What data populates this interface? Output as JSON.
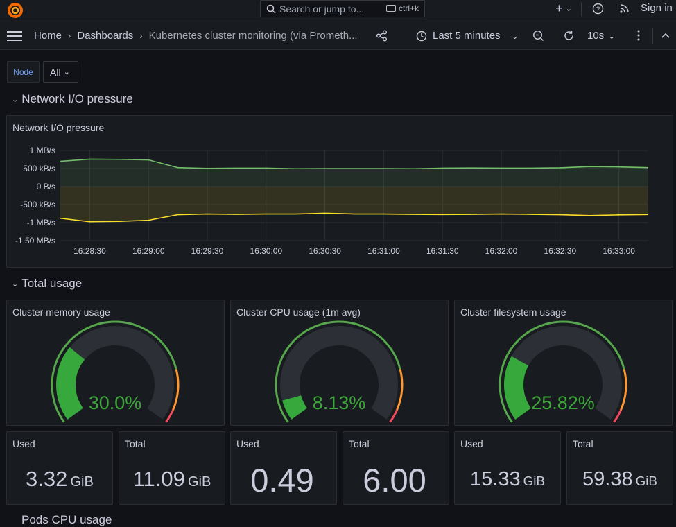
{
  "topbar": {
    "search_placeholder": "Search or jump to...",
    "shortcut": "ctrl+k",
    "plus_label": "+",
    "sign_in": "Sign in"
  },
  "navbar": {
    "breadcrumbs": [
      "Home",
      "Dashboards",
      "Kubernetes cluster monitoring (via Prometh..."
    ],
    "time_range": "Last 5 minutes",
    "refresh_interval": "10s"
  },
  "variables": {
    "node_label": "Node",
    "node_value": "All"
  },
  "rows": {
    "network": "Network I/O pressure",
    "total": "Total usage",
    "pods_cpu": "Pods CPU usage"
  },
  "network_panel": {
    "title": "Network I/O pressure"
  },
  "chart_data": {
    "type": "area",
    "x": [
      "16:28:15",
      "16:28:30",
      "16:28:45",
      "16:29:00",
      "16:29:15",
      "16:29:30",
      "16:29:45",
      "16:30:00",
      "16:30:15",
      "16:30:30",
      "16:30:45",
      "16:31:00",
      "16:31:15",
      "16:31:30",
      "16:31:45",
      "16:32:00",
      "16:32:15",
      "16:32:30",
      "16:32:45",
      "16:33:00",
      "16:33:15"
    ],
    "x_tick_labels": [
      "16:28:30",
      "16:29:00",
      "16:29:30",
      "16:30:00",
      "16:30:30",
      "16:31:00",
      "16:31:30",
      "16:32:00",
      "16:32:30",
      "16:33:00"
    ],
    "y_tick_labels": [
      "1 MB/s",
      "500 kB/s",
      "0 B/s",
      "-500 kB/s",
      "-1 MB/s",
      "-1.50 MB/s"
    ],
    "y_unit": "kB/s",
    "ylim": [
      -1500,
      1000
    ],
    "grid": true,
    "series": [
      {
        "color": "#73bf69",
        "values": [
          700,
          760,
          755,
          740,
          525,
          505,
          510,
          510,
          495,
          500,
          500,
          500,
          495,
          510,
          515,
          510,
          510,
          520,
          555,
          545,
          525
        ]
      },
      {
        "color": "#fade2a",
        "values": [
          -880,
          -975,
          -965,
          -935,
          -780,
          -760,
          -770,
          -760,
          -760,
          -740,
          -760,
          -760,
          -770,
          -775,
          -770,
          -760,
          -770,
          -780,
          -805,
          -785,
          -775
        ]
      }
    ]
  },
  "gauges": [
    {
      "title": "Cluster memory usage",
      "value": 30.0,
      "display": "30.0%",
      "max": 100,
      "thresholds": [
        {
          "from": 0,
          "color": "#37872d"
        },
        {
          "from": 80,
          "color": "#ff9830"
        },
        {
          "from": 95,
          "color": "#f2495c"
        }
      ],
      "value_color": "#37872d"
    },
    {
      "title": "Cluster CPU usage (1m avg)",
      "value": 8.13,
      "display": "8.13%",
      "max": 100,
      "thresholds": [
        {
          "from": 0,
          "color": "#37872d"
        },
        {
          "from": 80,
          "color": "#ff9830"
        },
        {
          "from": 95,
          "color": "#f2495c"
        }
      ],
      "value_color": "#37872d"
    },
    {
      "title": "Cluster filesystem usage",
      "value": 25.82,
      "display": "25.82%",
      "max": 100,
      "thresholds": [
        {
          "from": 0,
          "color": "#37872d"
        },
        {
          "from": 80,
          "color": "#ff9830"
        },
        {
          "from": 95,
          "color": "#f2495c"
        }
      ],
      "value_color": "#37872d"
    }
  ],
  "stats": [
    {
      "title": "Used",
      "value": "3.32",
      "unit": "GiB"
    },
    {
      "title": "Total",
      "value": "11.09",
      "unit": "GiB"
    },
    {
      "title": "Used",
      "value": "0.49",
      "unit": ""
    },
    {
      "title": "Total",
      "value": "6.00",
      "unit": ""
    },
    {
      "title": "Used",
      "value": "15.33",
      "unit": "GiB"
    },
    {
      "title": "Total",
      "value": "59.38",
      "unit": "GiB"
    }
  ]
}
